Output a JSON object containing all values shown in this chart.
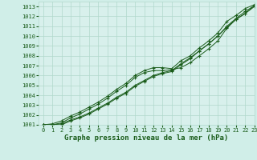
{
  "bg_color": "#d0eee8",
  "plot_bg_color": "#d8f0ec",
  "grid_color": "#b0d8cc",
  "line_color": "#1a5c1a",
  "xlabel": "Graphe pression niveau de la mer (hPa)",
  "xlabel_fontsize": 6.5,
  "xlim": [
    -0.5,
    23
  ],
  "ylim": [
    1001,
    1013.5
  ],
  "yticks": [
    1001,
    1002,
    1003,
    1004,
    1005,
    1006,
    1007,
    1008,
    1009,
    1010,
    1011,
    1012,
    1013
  ],
  "xticks": [
    0,
    1,
    2,
    3,
    4,
    5,
    6,
    7,
    8,
    9,
    10,
    11,
    12,
    13,
    14,
    15,
    16,
    17,
    18,
    19,
    20,
    21,
    22,
    23
  ],
  "series": [
    [
      1001.0,
      1001.0,
      1001.1,
      1001.5,
      1001.8,
      1002.2,
      1002.7,
      1003.2,
      1003.8,
      1004.3,
      1005.0,
      1005.5,
      1006.0,
      1006.3,
      1006.5,
      1007.2,
      1007.8,
      1008.5,
      1009.2,
      1010.0,
      1011.0,
      1011.8,
      1012.5,
      1013.1
    ],
    [
      1001.0,
      1001.0,
      1001.2,
      1001.7,
      1002.1,
      1002.6,
      1003.1,
      1003.7,
      1004.4,
      1005.0,
      1005.8,
      1006.3,
      1006.5,
      1006.5,
      1006.6,
      1006.8,
      1007.3,
      1008.0,
      1008.7,
      1009.5,
      1010.8,
      1011.7,
      1012.3,
      1013.1
    ],
    [
      1001.0,
      1001.0,
      1001.0,
      1001.4,
      1001.7,
      1002.1,
      1002.6,
      1003.1,
      1003.7,
      1004.2,
      1004.9,
      1005.4,
      1005.9,
      1006.2,
      1006.4,
      1007.1,
      1007.7,
      1008.5,
      1009.2,
      1010.0,
      1010.9,
      1011.7,
      1012.3,
      1013.0
    ],
    [
      1001.0,
      1001.1,
      1001.4,
      1001.9,
      1002.3,
      1002.8,
      1003.3,
      1003.9,
      1004.6,
      1005.2,
      1006.0,
      1006.5,
      1006.8,
      1006.8,
      1006.7,
      1007.5,
      1008.0,
      1008.8,
      1009.5,
      1010.3,
      1011.5,
      1012.1,
      1012.8,
      1013.2
    ]
  ],
  "tick_fontsize": 5.0,
  "marker_size": 3.0,
  "linewidth": 0.7
}
